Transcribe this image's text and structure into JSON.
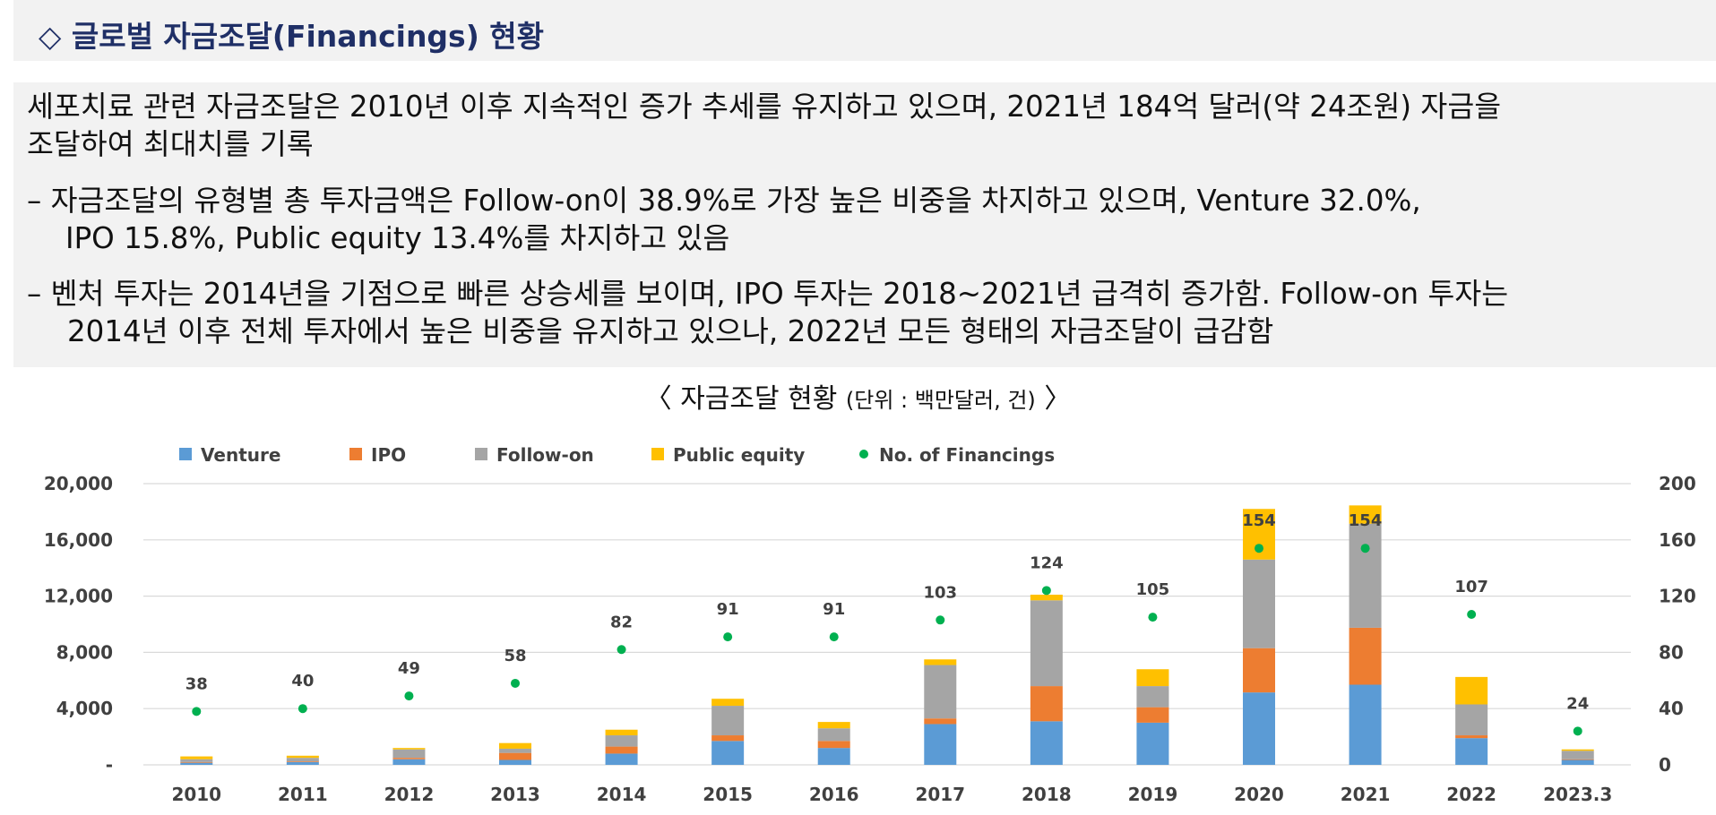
{
  "header": {
    "title": "◇ 글로벌 자금조달(Financings) 현황"
  },
  "summary": {
    "line1a": "세포치료 관련 자금조달은 2010년 이후 지속적인 증가 추세를 유지하고 있으며, 2021년 184억 달러(약 24조원) 자금을",
    "line1b": "조달하여 최대치를 기록",
    "bullet1a": "–  자금조달의 유형별 총 투자금액은 Follow-on이 38.9%로 가장 높은 비중을 차지하고 있으며, Venture 32.0%,",
    "bullet1b": "IPO 15.8%, Public equity 13.4%를 차지하고 있음",
    "bullet2a": "–   벤처 투자는 2014년을 기점으로 빠른 상승세를 보이며, IPO 투자는 2018~2021년 급격히 증가함. Follow-on 투자는",
    "bullet2b": "2014년 이후 전체 투자에서 높은 비중을 유지하고 있으나, 2022년 모든 형태의 자금조달이 급감함"
  },
  "chart_heading": {
    "main": "〈 자금조달 현황 ",
    "unit": "(단위 : 백만달러, 건)",
    "close": " 〉"
  },
  "colors": {
    "venture": "#5b9bd5",
    "ipo": "#ed7d31",
    "follow_on": "#a5a5a5",
    "public_equity": "#ffc000",
    "financings": "#00b050",
    "grid": "#d9d9d9"
  },
  "chart_data": {
    "type": "bar",
    "stacked": true,
    "categories": [
      "2010",
      "2011",
      "2012",
      "2013",
      "2014",
      "2015",
      "2016",
      "2017",
      "2018",
      "2019",
      "2020",
      "2021",
      "2022",
      "2023.3"
    ],
    "series": [
      {
        "name": "Venture",
        "axis": "left",
        "values": [
          150,
          200,
          400,
          350,
          800,
          1700,
          1200,
          2900,
          3100,
          3000,
          5150,
          5700,
          1900,
          350
        ]
      },
      {
        "name": "IPO",
        "axis": "left",
        "values": [
          50,
          50,
          100,
          500,
          500,
          400,
          500,
          400,
          2500,
          1100,
          3150,
          4050,
          200,
          50
        ]
      },
      {
        "name": "Follow-on",
        "axis": "left",
        "values": [
          200,
          250,
          600,
          300,
          800,
          2100,
          900,
          3800,
          6100,
          1500,
          6300,
          7400,
          2200,
          600
        ]
      },
      {
        "name": "Public equity",
        "axis": "left",
        "values": [
          200,
          150,
          100,
          400,
          400,
          500,
          450,
          400,
          400,
          1200,
          3600,
          1300,
          1950,
          100
        ]
      },
      {
        "name": "No. of Financings",
        "axis": "right",
        "type": "scatter",
        "values": [
          38,
          40,
          49,
          58,
          82,
          91,
          91,
          103,
          124,
          105,
          154,
          154,
          107,
          24
        ]
      }
    ],
    "y_left": {
      "min": 0,
      "max": 20000,
      "ticks": [
        "-",
        "4,000",
        "8,000",
        "12,000",
        "16,000",
        "20,000"
      ]
    },
    "y_right": {
      "min": 0,
      "max": 200,
      "ticks": [
        "0",
        "40",
        "80",
        "120",
        "160",
        "200"
      ]
    },
    "legend_position": "top",
    "grid": true
  }
}
